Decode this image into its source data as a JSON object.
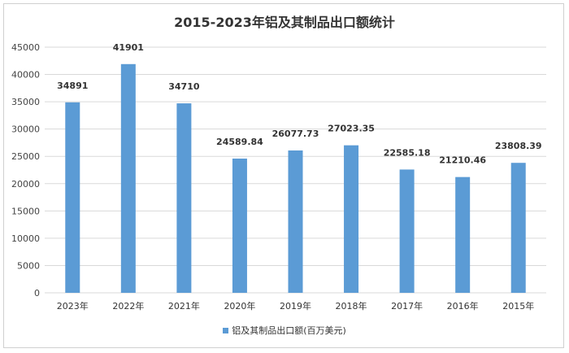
{
  "chart_data": {
    "type": "bar",
    "title": "2015-2023年铝及其制品出口额统计",
    "categories": [
      "2023年",
      "2022年",
      "2021年",
      "2020年",
      "2019年",
      "2018年",
      "2017年",
      "2016年",
      "2015年"
    ],
    "series": [
      {
        "name": "铝及其制品出口额(百万美元)",
        "values": [
          34891,
          41901,
          34710,
          24589.84,
          26077.73,
          27023.35,
          22585.18,
          21210.46,
          23808.39
        ],
        "data_labels": [
          "34891",
          "41901",
          "34710",
          "24589.84",
          "26077.73",
          "27023.35",
          "22585.18",
          "21210.46",
          "23808.39"
        ]
      }
    ],
    "ylim": [
      0,
      45000
    ],
    "yticks": [
      0,
      5000,
      10000,
      15000,
      20000,
      25000,
      30000,
      35000,
      40000,
      45000
    ],
    "grid": true,
    "legend_position": "bottom",
    "bar_color": "#5b9bd5",
    "grid_color": "#d9d9d9"
  }
}
